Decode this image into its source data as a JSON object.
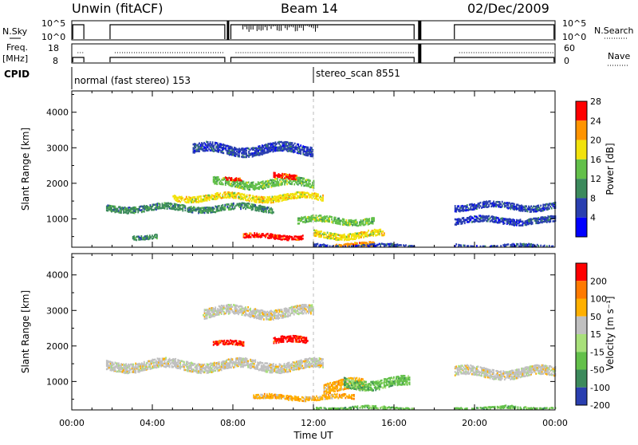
{
  "header": {
    "radar": "Unwin (fitACF)",
    "beam": "Beam 14",
    "date": "02/Dec/2009"
  },
  "status_panels": {
    "nsky": {
      "label": "N.Sky",
      "ticks": [
        "10^5",
        "10^0"
      ]
    },
    "nsearch": {
      "label": "N.Search",
      "ticks": [
        "10^5",
        "10^0"
      ]
    },
    "freq": {
      "label_line1": "Freq.",
      "label_line2": "[MHz]",
      "ticks": [
        "18",
        "8"
      ]
    },
    "nave": {
      "label": "Nave",
      "ticks": [
        "60",
        "0"
      ]
    },
    "cpid": {
      "label": "CPID",
      "modes": [
        {
          "name": "normal (fast stereo) 153",
          "start_hour": 0
        },
        {
          "name": "stereo_scan 8551",
          "start_hour": 12
        }
      ]
    }
  },
  "chart_data": [
    {
      "type": "heatmap",
      "panel": "power",
      "ylabel": "Slant Range [km]",
      "y_ticks": [
        1000,
        2000,
        3000,
        4000
      ],
      "ylim": [
        200,
        4600
      ],
      "x_ticks": [
        "00:00",
        "04:00",
        "08:00",
        "12:00",
        "16:00",
        "20:00",
        "00:00"
      ],
      "xlim_hours": [
        0,
        24
      ],
      "colorbar": {
        "label": "Power [dB]",
        "ticks": [
          "4",
          "8",
          "12",
          "16",
          "20",
          "24",
          "28"
        ],
        "colors": [
          "#0000ff",
          "#2a3fb0",
          "#3c8a5c",
          "#63c04a",
          "#f2e20c",
          "#ff9400",
          "#ff0000"
        ]
      },
      "data_gaps_hours": [
        [
          0.6,
          1.6
        ],
        [
          17.0,
          19.0
        ]
      ],
      "regions": [
        {
          "t_start": 1.7,
          "t_end": 10.0,
          "r_center": 1350,
          "r_width": 180,
          "level": 2
        },
        {
          "t_start": 5.0,
          "t_end": 12.5,
          "r_center": 1650,
          "r_width": 200,
          "level": 4
        },
        {
          "t_start": 7.0,
          "t_end": 12.0,
          "r_center": 2050,
          "r_width": 220,
          "level": 3
        },
        {
          "t_start": 7.6,
          "t_end": 8.4,
          "r_center": 2200,
          "r_width": 110,
          "level": 6
        },
        {
          "t_start": 10.0,
          "t_end": 11.2,
          "r_center": 2250,
          "r_width": 120,
          "level": 6
        },
        {
          "t_start": 8.5,
          "t_end": 11.5,
          "r_center": 550,
          "r_width": 120,
          "level": 6
        },
        {
          "t_start": 11.2,
          "t_end": 15.0,
          "r_center": 1000,
          "r_width": 180,
          "level": 3
        },
        {
          "t_start": 12.0,
          "t_end": 15.5,
          "r_center": 600,
          "r_width": 200,
          "level": 4
        },
        {
          "t_start": 13.0,
          "t_end": 15.0,
          "r_center": 300,
          "r_width": 120,
          "level": 5
        },
        {
          "t_start": 6.0,
          "t_end": 12.0,
          "r_center": 3000,
          "r_width": 260,
          "level": 1
        },
        {
          "t_start": 19.0,
          "t_end": 24.0,
          "r_center": 1400,
          "r_width": 200,
          "level": 1
        },
        {
          "t_start": 19.0,
          "t_end": 24.0,
          "r_center": 1000,
          "r_width": 160,
          "level": 1
        },
        {
          "t_start": 3.0,
          "t_end": 4.2,
          "r_center": 550,
          "r_width": 120,
          "level": 2
        },
        {
          "t_start": 12.0,
          "t_end": 17.0,
          "r_center": 280,
          "r_width": 100,
          "level": 1
        },
        {
          "t_start": 19.0,
          "t_end": 24.0,
          "r_center": 280,
          "r_width": 100,
          "level": 1
        }
      ]
    },
    {
      "type": "heatmap",
      "panel": "velocity",
      "ylabel": "Slant Range [km]",
      "y_ticks": [
        1000,
        2000,
        3000,
        4000
      ],
      "ylim": [
        200,
        4600
      ],
      "x_ticks": [
        "00:00",
        "04:00",
        "08:00",
        "12:00",
        "16:00",
        "20:00",
        "00:00"
      ],
      "xlim_hours": [
        0,
        24
      ],
      "xlabel": "Time UT",
      "colorbar": {
        "label": "Velocity [m s⁻¹]",
        "ticks": [
          "200",
          "100",
          "50",
          "15",
          "-15",
          "-50",
          "-100",
          "-200"
        ],
        "colors": [
          "#2a3fb0",
          "#3c8a5c",
          "#63c04a",
          "#a8e07a",
          "#c0c0c0",
          "#ffb000",
          "#ff7a00",
          "#ff0000"
        ]
      },
      "regions": [
        {
          "t_start": 1.7,
          "t_end": 12.5,
          "r_center": 1500,
          "r_width": 250,
          "level": 4
        },
        {
          "t_start": 7.0,
          "t_end": 8.5,
          "r_center": 2100,
          "r_width": 150,
          "level": 7
        },
        {
          "t_start": 10.0,
          "t_end": 11.7,
          "r_center": 2200,
          "r_width": 160,
          "level": 7
        },
        {
          "t_start": 12.5,
          "t_end": 14.5,
          "r_center": 900,
          "r_width": 300,
          "level": 5
        },
        {
          "t_start": 9.0,
          "t_end": 14.0,
          "r_center": 600,
          "r_width": 120,
          "level": 5
        },
        {
          "t_start": 13.5,
          "t_end": 16.8,
          "r_center": 1000,
          "r_width": 250,
          "level": 2
        },
        {
          "t_start": 19.0,
          "t_end": 24.0,
          "r_center": 1300,
          "r_width": 250,
          "level": 4
        },
        {
          "t_start": 6.5,
          "t_end": 12.0,
          "r_center": 3000,
          "r_width": 250,
          "level": 4
        },
        {
          "t_start": 12.0,
          "t_end": 17.0,
          "r_center": 300,
          "r_width": 100,
          "level": 2
        },
        {
          "t_start": 19.0,
          "t_end": 24.0,
          "r_center": 300,
          "r_width": 100,
          "level": 2
        }
      ]
    }
  ]
}
